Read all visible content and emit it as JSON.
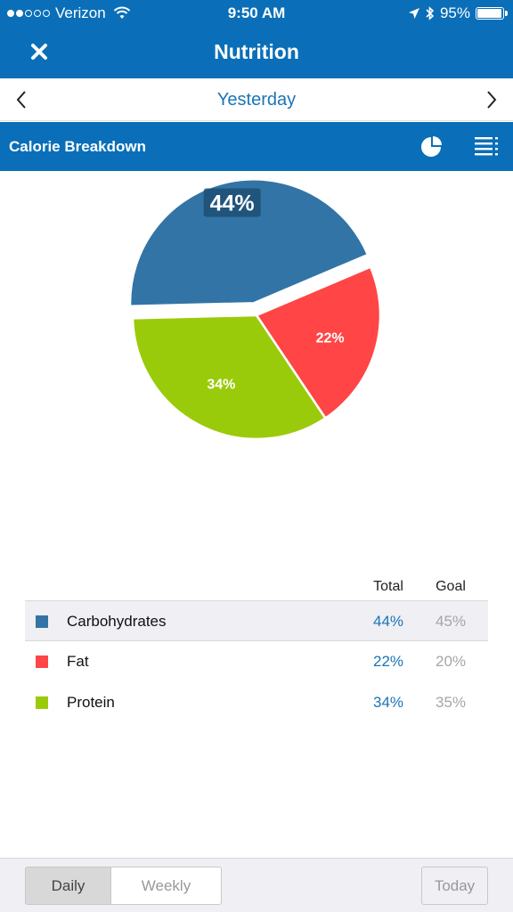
{
  "status_bar": {
    "carrier": "Verizon",
    "time": "9:50 AM",
    "battery": "95%",
    "signal_bars_filled": 2,
    "signal_bars_total": 5
  },
  "nav": {
    "title": "Nutrition",
    "close_icon": "close-x-icon"
  },
  "date_nav": {
    "label": "Yesterday"
  },
  "section": {
    "title": "Calorie Breakdown",
    "pie_icon": "pie-chart-icon",
    "list_icon": "list-icon"
  },
  "chart_data": {
    "type": "pie",
    "slices": [
      {
        "name": "Carbohydrates",
        "value": 44,
        "label": "44%",
        "color": "#3274a6"
      },
      {
        "name": "Fat",
        "value": 22,
        "label": "22%",
        "color": "#ff4545"
      },
      {
        "name": "Protein",
        "value": 34,
        "label": "34%",
        "color": "#9acb0a"
      }
    ],
    "selected_slice": "Carbohydrates"
  },
  "table": {
    "header_total": "Total",
    "header_goal": "Goal",
    "rows": [
      {
        "label": "Carbohydrates",
        "total": "44%",
        "goal": "45%",
        "color": "#3274a6"
      },
      {
        "label": "Fat",
        "total": "22%",
        "goal": "20%",
        "color": "#ff4545"
      },
      {
        "label": "Protein",
        "total": "34%",
        "goal": "35%",
        "color": "#9acb0a"
      }
    ]
  },
  "bottom_bar": {
    "daily_label": "Daily",
    "weekly_label": "Weekly",
    "today_label": "Today",
    "active_segment": "Daily"
  }
}
